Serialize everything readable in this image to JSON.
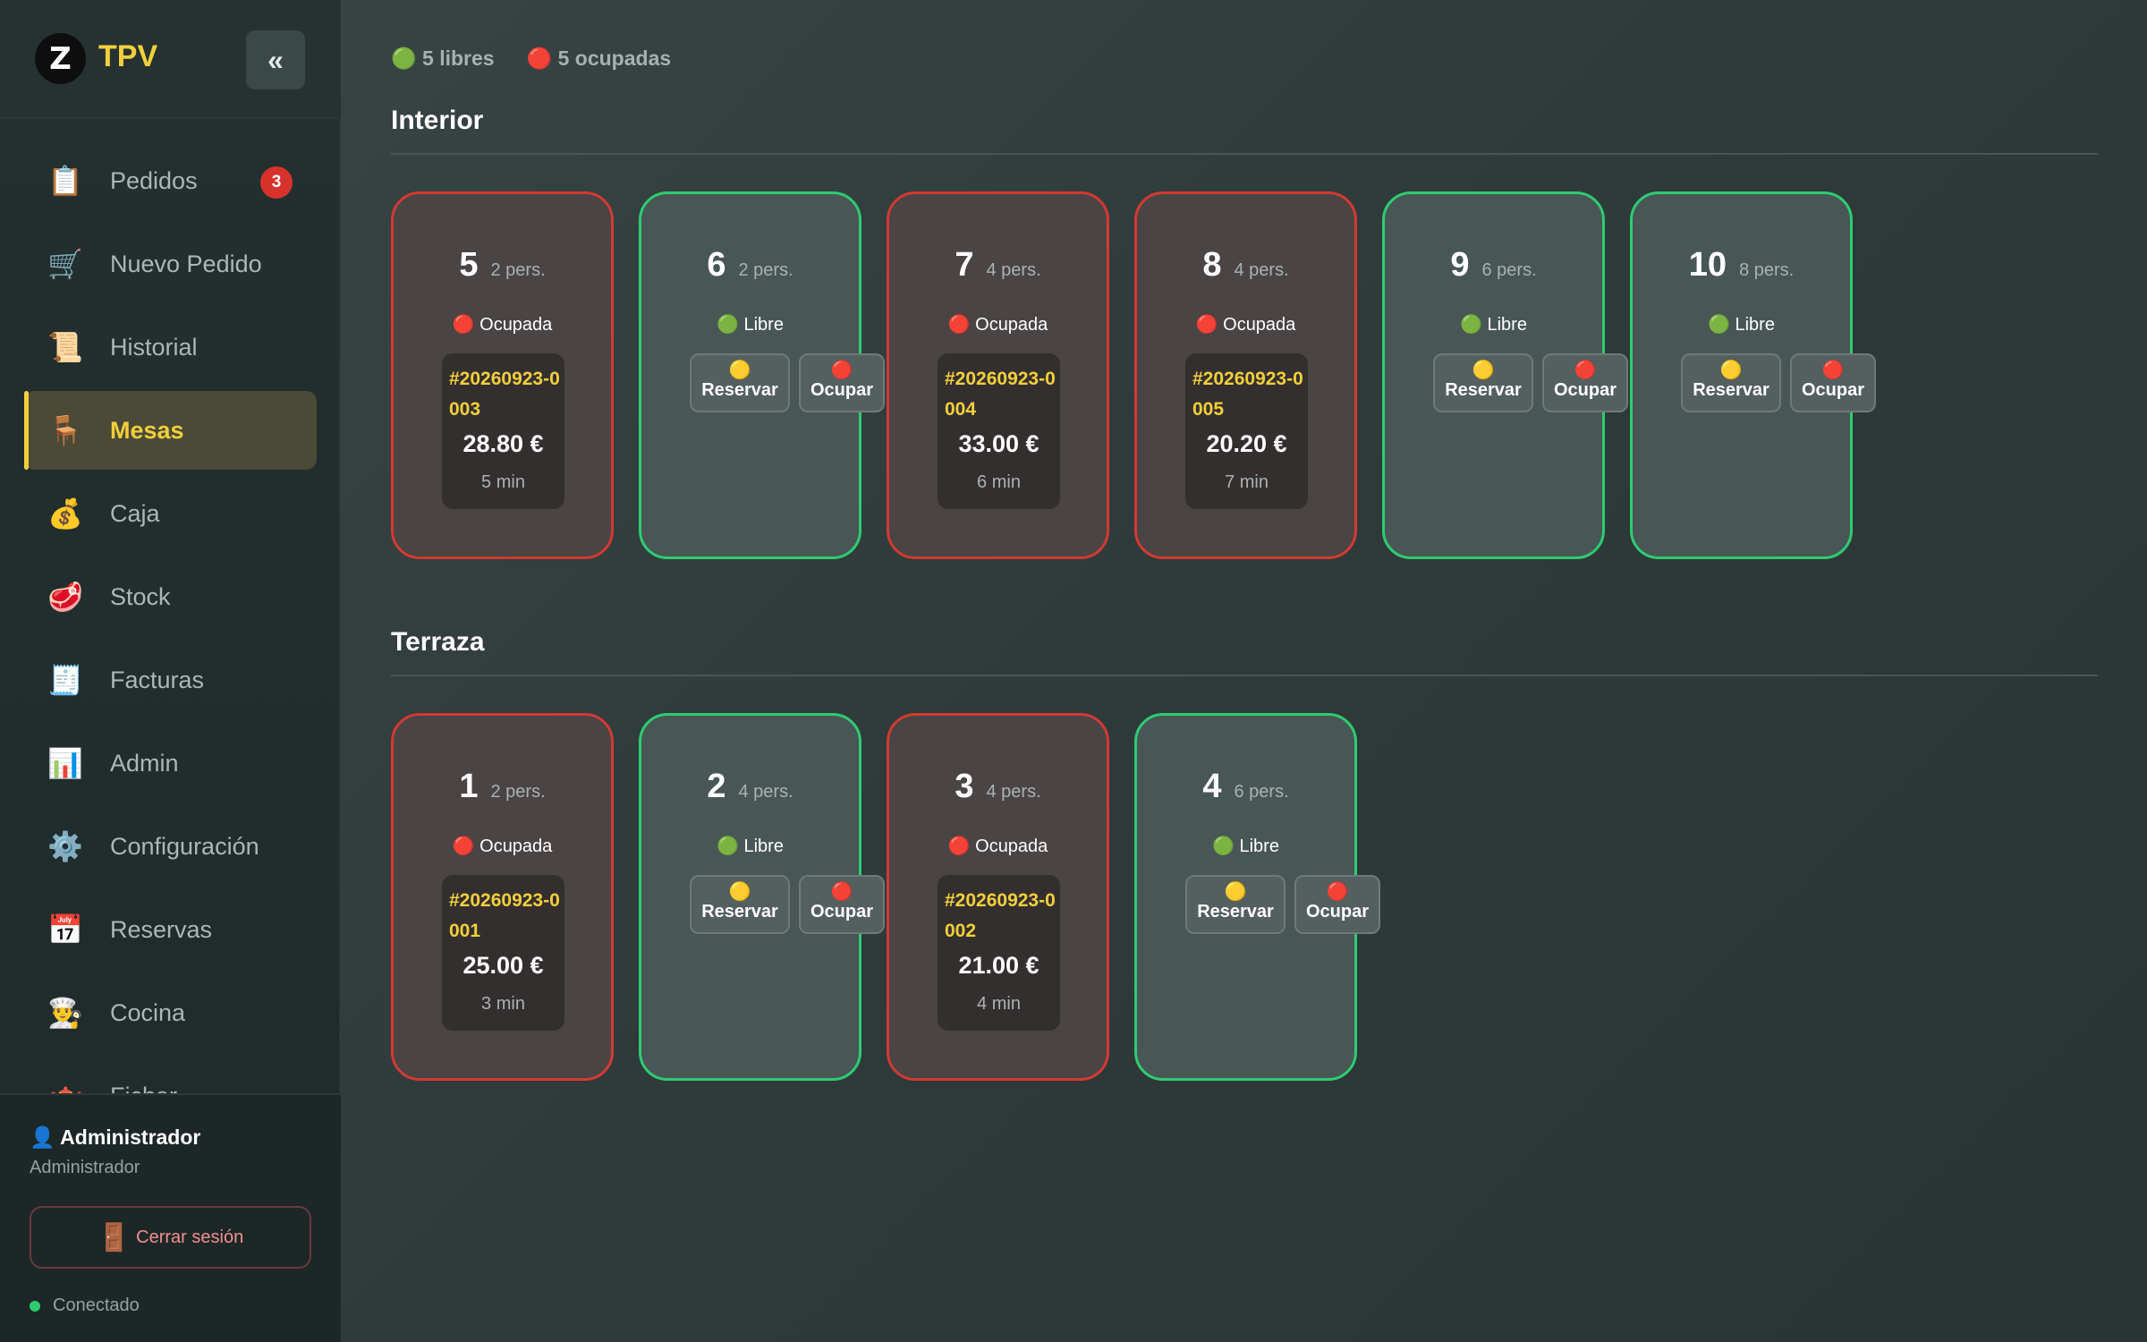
{
  "brand": {
    "logo": "Z",
    "name": "TPV",
    "collapse_label": "«"
  },
  "nav": [
    {
      "icon": "📋",
      "label": "Pedidos",
      "badge": "3",
      "active": false
    },
    {
      "icon": "🛒",
      "label": "Nuevo Pedido",
      "active": false
    },
    {
      "icon": "📜",
      "label": "Historial",
      "active": false
    },
    {
      "icon": "🪑",
      "label": "Mesas",
      "active": true
    },
    {
      "icon": "💰",
      "label": "Caja",
      "active": false
    },
    {
      "icon": "🥩",
      "label": "Stock",
      "active": false
    },
    {
      "icon": "🧾",
      "label": "Facturas",
      "active": false
    },
    {
      "icon": "📊",
      "label": "Admin",
      "active": false
    },
    {
      "icon": "⚙️",
      "label": "Configuración",
      "active": false
    },
    {
      "icon": "📅",
      "label": "Reservas",
      "active": false
    },
    {
      "icon": "👨‍🍳",
      "label": "Cocina",
      "active": false
    },
    {
      "icon": "🫖",
      "label": "Fichar",
      "active": false
    }
  ],
  "user": {
    "name": "👤 Administrador",
    "role": "Administrador",
    "logout_icon": "🚪",
    "logout_label": "Cerrar sesión",
    "status": "Conectado"
  },
  "summary": {
    "free": "🟢 5 libres",
    "occupied": "🔴 5 ocupadas"
  },
  "labels": {
    "occupied": "🔴 Ocupada",
    "free": "🟢 Libre",
    "reserve_icon": "🟡",
    "reserve": "Reservar",
    "occupy_icon": "🔴",
    "occupy": "Ocupar"
  },
  "sections": [
    {
      "title": "Interior",
      "tables": [
        {
          "number": "5",
          "capacity": "2 pers.",
          "status": "occupied",
          "order_id": "#20260923-0003",
          "total": "28.80 €",
          "elapsed": "5 min"
        },
        {
          "number": "6",
          "capacity": "2 pers.",
          "status": "free"
        },
        {
          "number": "7",
          "capacity": "4 pers.",
          "status": "occupied",
          "order_id": "#20260923-0004",
          "total": "33.00 €",
          "elapsed": "6 min"
        },
        {
          "number": "8",
          "capacity": "4 pers.",
          "status": "occupied",
          "order_id": "#20260923-0005",
          "total": "20.20 €",
          "elapsed": "7 min"
        },
        {
          "number": "9",
          "capacity": "6 pers.",
          "status": "free"
        },
        {
          "number": "10",
          "capacity": "8 pers.",
          "status": "free"
        }
      ]
    },
    {
      "title": "Terraza",
      "tables": [
        {
          "number": "1",
          "capacity": "2 pers.",
          "status": "occupied",
          "order_id": "#20260923-0001",
          "total": "25.00 €",
          "elapsed": "3 min"
        },
        {
          "number": "2",
          "capacity": "4 pers.",
          "status": "free"
        },
        {
          "number": "3",
          "capacity": "4 pers.",
          "status": "occupied",
          "order_id": "#20260923-0002",
          "total": "21.00 €",
          "elapsed": "4 min"
        },
        {
          "number": "4",
          "capacity": "6 pers.",
          "status": "free"
        }
      ]
    }
  ],
  "colors": {
    "accent": "#f2cf3c",
    "occupied": "#d23a32",
    "free": "#2ecc71"
  }
}
